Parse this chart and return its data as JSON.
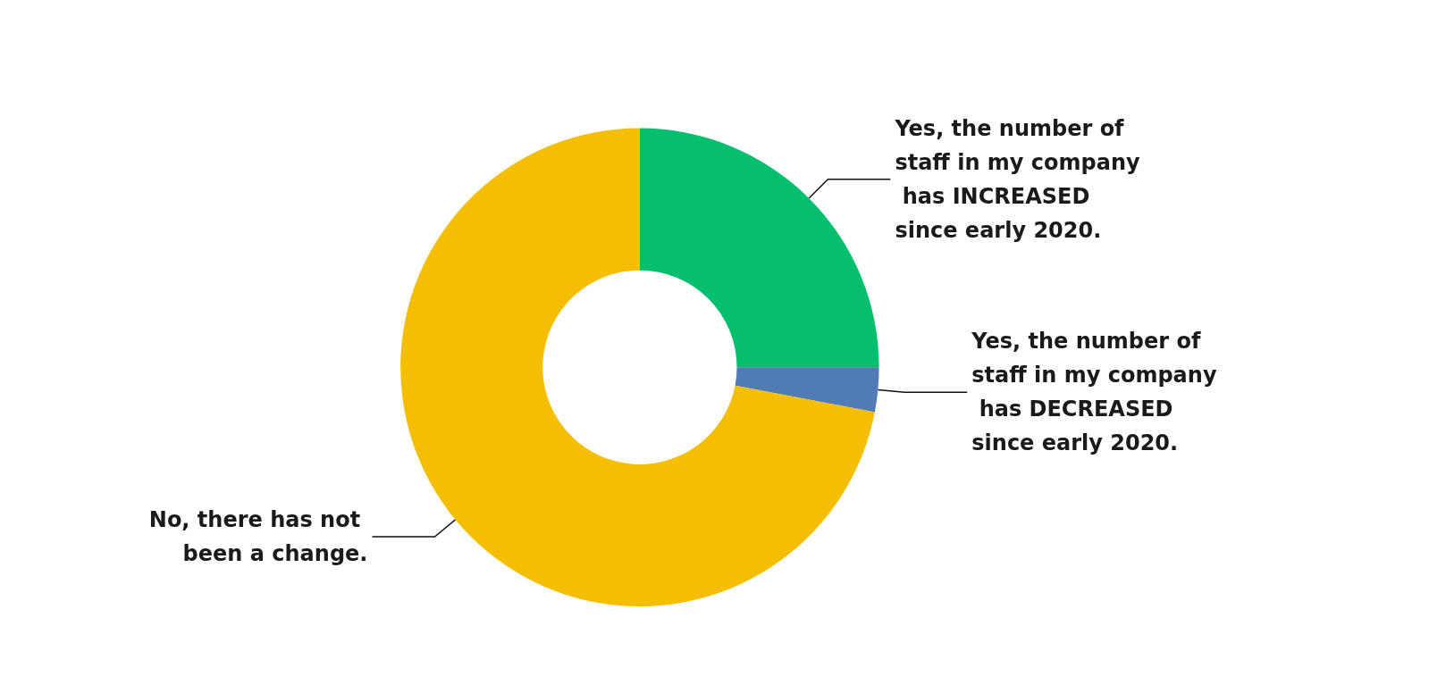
{
  "chart_data": {
    "type": "donut",
    "categories": [
      "Yes, the number of staff in my company has INCREASED since early 2020.",
      "Yes, the number of staff in my company has DECREASED since early 2020.",
      "No, there has not been a change."
    ],
    "values": [
      25,
      3,
      72
    ],
    "colors": [
      "#05be6e",
      "#507bb4",
      "#f6be00"
    ],
    "legend": false
  }
}
